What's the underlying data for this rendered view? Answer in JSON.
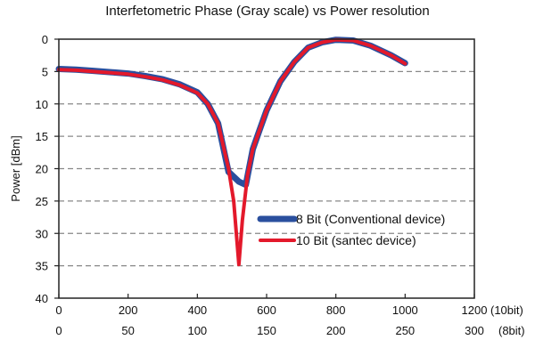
{
  "chart_data": {
    "type": "line",
    "title": "Interfetometric Phase (Gray scale) vs Power resolution",
    "ylabel": "Power [dBm]",
    "xlabel": "",
    "ylim": [
      0,
      40
    ],
    "y_inverted": true,
    "xlim": [
      0,
      1200
    ],
    "y_ticks": [
      "0",
      "5",
      "10",
      "15",
      "20",
      "25",
      "30",
      "35",
      "40"
    ],
    "x_ticks_10bit": [
      "0",
      "200",
      "400",
      "600",
      "800",
      "1000",
      "1200"
    ],
    "x_ticks_8bit": [
      "0",
      "50",
      "100",
      "150",
      "200",
      "250",
      "300"
    ],
    "x_unit_10bit": "(10bit)",
    "x_unit_8bit": "(8bit)",
    "grid": "horizontal dashed",
    "legend_position": "lower-right",
    "series": [
      {
        "name": "8 Bit (Conventional device)",
        "color": "#2a4f9e",
        "x": [
          0,
          50,
          100,
          150,
          200,
          250,
          300,
          350,
          400,
          430,
          460,
          490,
          520,
          540,
          560,
          580,
          600,
          640,
          680,
          720,
          760,
          800,
          850,
          900,
          960,
          1000
        ],
        "y": [
          4.6,
          4.7,
          4.9,
          5.1,
          5.3,
          5.7,
          6.2,
          7.0,
          8.2,
          10.0,
          13.0,
          20.5,
          22.0,
          22.5,
          17.0,
          14.0,
          11.0,
          6.5,
          3.5,
          1.3,
          0.5,
          0.1,
          0.2,
          1.0,
          2.5,
          3.7
        ]
      },
      {
        "name": "10 Bit (santec device)",
        "color": "#e3192b",
        "x": [
          0,
          50,
          100,
          150,
          200,
          250,
          300,
          350,
          400,
          430,
          460,
          490,
          505,
          520,
          530,
          545,
          560,
          580,
          600,
          640,
          680,
          720,
          760,
          800,
          850,
          900,
          960,
          1000
        ],
        "y": [
          4.7,
          4.8,
          5.0,
          5.2,
          5.4,
          5.8,
          6.3,
          7.1,
          8.3,
          10.0,
          13.0,
          20.0,
          25.0,
          34.8,
          28.0,
          21.0,
          17.0,
          14.0,
          11.0,
          6.5,
          3.5,
          1.3,
          0.5,
          0.1,
          0.2,
          1.0,
          2.5,
          3.8
        ]
      }
    ]
  }
}
